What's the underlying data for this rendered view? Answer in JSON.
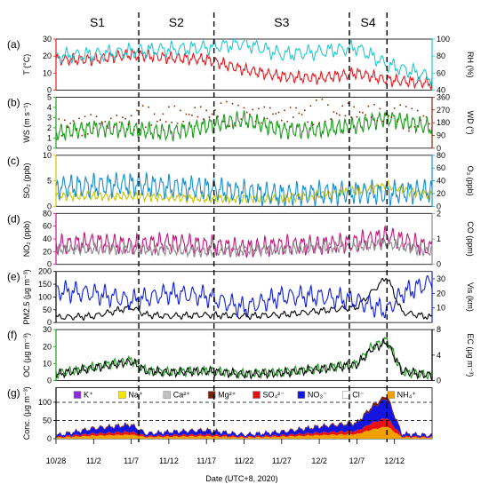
{
  "chart_data": {
    "type": "line",
    "segments": [
      {
        "label": "S1",
        "start_day": 0,
        "end_day": 11
      },
      {
        "label": "S2",
        "start_day": 11,
        "end_day": 21
      },
      {
        "label": "S3",
        "start_day": 21,
        "end_day": 39
      },
      {
        "label": "S4",
        "start_day": 39,
        "end_day": 44
      }
    ],
    "x_axis": {
      "label": "Date (UTC+8, 2020)",
      "range_days": [
        0,
        50
      ],
      "ticks": [
        {
          "day": 0,
          "label": "10/28"
        },
        {
          "day": 5,
          "label": "11/2"
        },
        {
          "day": 10,
          "label": "11/7"
        },
        {
          "day": 15,
          "label": "11/12"
        },
        {
          "day": 20,
          "label": "11/17"
        },
        {
          "day": 25,
          "label": "11/22"
        },
        {
          "day": 30,
          "label": "11/27"
        },
        {
          "day": 35,
          "label": "12/2"
        },
        {
          "day": 40,
          "label": "12/7"
        },
        {
          "day": 45,
          "label": "12/12"
        }
      ]
    },
    "panels": [
      {
        "id": "a",
        "tag": "(a)",
        "left": {
          "label": "T (°C)",
          "color": "#e8191f",
          "ticks": [
            0,
            10,
            20,
            30
          ],
          "ylim": [
            0,
            30
          ]
        },
        "right": {
          "label": "RH (%)",
          "color": "#1ec8d0",
          "ticks": [
            40,
            60,
            80,
            100
          ],
          "ylim": [
            40,
            100
          ]
        },
        "series": [
          {
            "name": "T",
            "axis": "left",
            "color": "#e8191f",
            "keys": [
              [
                0,
                18
              ],
              [
                5,
                18
              ],
              [
                10,
                21
              ],
              [
                15,
                19
              ],
              [
                20,
                18
              ],
              [
                25,
                12
              ],
              [
                30,
                8
              ],
              [
                35,
                7
              ],
              [
                40,
                10
              ],
              [
                44,
                6
              ],
              [
                50,
                4
              ]
            ],
            "wave": 4,
            "period": 1
          },
          {
            "name": "RH",
            "axis": "right",
            "color": "#1ec8d0",
            "keys": [
              [
                0,
                80
              ],
              [
                5,
                82
              ],
              [
                10,
                86
              ],
              [
                15,
                88
              ],
              [
                20,
                90
              ],
              [
                25,
                95
              ],
              [
                30,
                82
              ],
              [
                35,
                85
              ],
              [
                40,
                90
              ],
              [
                44,
                70
              ],
              [
                50,
                55
              ]
            ],
            "wave": 10,
            "period": 1.4
          }
        ]
      },
      {
        "id": "b",
        "tag": "(b)",
        "left": {
          "label": "WS (m s⁻¹)",
          "color": "#1a9c1a",
          "ticks": [
            0,
            1,
            2,
            3,
            4,
            5
          ],
          "ylim": [
            0,
            5
          ]
        },
        "right": {
          "label": "WD (°)",
          "color": "#8b2a0a",
          "ticks": [
            0,
            90,
            180,
            270,
            360
          ],
          "ylim": [
            0,
            360
          ]
        },
        "series": [
          {
            "name": "WS",
            "axis": "left",
            "color": "#1a9c1a",
            "keys": [
              [
                0,
                1.5
              ],
              [
                5,
                2
              ],
              [
                10,
                1.8
              ],
              [
                15,
                1.5
              ],
              [
                20,
                2.2
              ],
              [
                25,
                2.8
              ],
              [
                30,
                1.8
              ],
              [
                35,
                1.8
              ],
              [
                40,
                2.2
              ],
              [
                44,
                3
              ],
              [
                50,
                2
              ]
            ],
            "wave": 1,
            "period": 0.9
          },
          {
            "name": "WD",
            "axis": "right",
            "color": "#8b2a0a",
            "scatter": true,
            "keys": [
              [
                0,
                150
              ],
              [
                10,
                200
              ],
              [
                20,
                250
              ],
              [
                30,
                240
              ],
              [
                40,
                260
              ],
              [
                50,
                200
              ]
            ],
            "wave": 100,
            "period": 0.7
          }
        ]
      },
      {
        "id": "c",
        "tag": "(c)",
        "left": {
          "label": "SO₂ (ppb)",
          "color": "#c8c800",
          "ticks": [
            0,
            5,
            10
          ],
          "ylim": [
            0,
            10
          ]
        },
        "right": {
          "label": "O₃ (ppb)",
          "color": "#1a8fd0",
          "ticks": [
            0,
            20,
            40,
            60,
            80
          ],
          "ylim": [
            0,
            80
          ]
        },
        "series": [
          {
            "name": "SO2",
            "axis": "left",
            "color": "#c8c800",
            "keys": [
              [
                0,
                2
              ],
              [
                10,
                2
              ],
              [
                20,
                1.5
              ],
              [
                30,
                1.5
              ],
              [
                40,
                3
              ],
              [
                44,
                4
              ],
              [
                50,
                2
              ]
            ],
            "wave": 1,
            "period": 0.8
          },
          {
            "name": "O3",
            "axis": "right",
            "color": "#1a8fd0",
            "keys": [
              [
                0,
                30
              ],
              [
                5,
                32
              ],
              [
                10,
                35
              ],
              [
                15,
                30
              ],
              [
                20,
                28
              ],
              [
                25,
                22
              ],
              [
                30,
                18
              ],
              [
                35,
                20
              ],
              [
                40,
                22
              ],
              [
                44,
                20
              ],
              [
                50,
                25
              ]
            ],
            "wave": 22,
            "period": 1
          }
        ]
      },
      {
        "id": "d",
        "tag": "(d)",
        "left": {
          "label": "NO₂ (ppb)",
          "color": "#c0187e",
          "ticks": [
            0,
            20,
            40,
            60,
            80
          ],
          "ylim": [
            0,
            80
          ]
        },
        "right": {
          "label": "CO (ppm)",
          "color": "#8e8e8e",
          "ticks": [
            0,
            1,
            2
          ],
          "ylim": [
            0,
            2
          ]
        },
        "series": [
          {
            "name": "NO2",
            "axis": "left",
            "color": "#c0187e",
            "keys": [
              [
                0,
                30
              ],
              [
                5,
                35
              ],
              [
                10,
                30
              ],
              [
                15,
                35
              ],
              [
                20,
                30
              ],
              [
                25,
                25
              ],
              [
                30,
                30
              ],
              [
                35,
                30
              ],
              [
                40,
                35
              ],
              [
                44,
                45
              ],
              [
                50,
                25
              ]
            ],
            "wave": 18,
            "period": 1
          },
          {
            "name": "CO",
            "axis": "right",
            "color": "#8e8e8e",
            "keys": [
              [
                0,
                0.6
              ],
              [
                10,
                0.6
              ],
              [
                20,
                0.5
              ],
              [
                30,
                0.6
              ],
              [
                40,
                0.7
              ],
              [
                44,
                0.8
              ],
              [
                50,
                0.5
              ]
            ],
            "wave": 0.25,
            "period": 0.8
          }
        ]
      },
      {
        "id": "e",
        "tag": "(e)",
        "left": {
          "label": "PM2.5 (μg m⁻³)",
          "color": "#000000",
          "ticks": [
            0,
            50,
            100,
            150,
            200
          ],
          "ylim": [
            0,
            200
          ]
        },
        "right": {
          "label": "Vis (km)",
          "color": "#1020e0",
          "ticks": [
            10,
            20,
            30
          ],
          "ylim": [
            0,
            35
          ]
        },
        "series": [
          {
            "name": "PM2.5",
            "axis": "left",
            "color": "#000000",
            "keys": [
              [
                0,
                20
              ],
              [
                5,
                25
              ],
              [
                10,
                60
              ],
              [
                12,
                30
              ],
              [
                15,
                25
              ],
              [
                20,
                30
              ],
              [
                25,
                25
              ],
              [
                30,
                30
              ],
              [
                35,
                45
              ],
              [
                40,
                60
              ],
              [
                42,
                120
              ],
              [
                44,
                180
              ],
              [
                46,
                40
              ],
              [
                50,
                20
              ]
            ],
            "wave": 15,
            "period": 1.3
          },
          {
            "name": "Vis",
            "axis": "right",
            "color": "#1020e0",
            "keys": [
              [
                0,
                22
              ],
              [
                5,
                20
              ],
              [
                10,
                15
              ],
              [
                15,
                20
              ],
              [
                20,
                18
              ],
              [
                25,
                10
              ],
              [
                30,
                18
              ],
              [
                35,
                18
              ],
              [
                40,
                15
              ],
              [
                44,
                8
              ],
              [
                46,
                20
              ],
              [
                50,
                28
              ]
            ],
            "wave": 8,
            "period": 1.3
          }
        ]
      },
      {
        "id": "f",
        "tag": "(f)",
        "left": {
          "label": "OC (μg m⁻³)",
          "color": "#1a9c1a",
          "ticks": [
            0,
            10,
            20,
            30
          ],
          "ylim": [
            0,
            30
          ]
        },
        "right": {
          "label": "EC (μg m⁻³)",
          "color": "#000000",
          "ticks": [
            0,
            4,
            8
          ],
          "ylim": [
            0,
            8
          ]
        },
        "series": [
          {
            "name": "OC",
            "axis": "left",
            "color": "#1a9c1a",
            "keys": [
              [
                0,
                4
              ],
              [
                5,
                8
              ],
              [
                10,
                12
              ],
              [
                12,
                6
              ],
              [
                15,
                5
              ],
              [
                20,
                6
              ],
              [
                25,
                4
              ],
              [
                30,
                5
              ],
              [
                35,
                7
              ],
              [
                40,
                10
              ],
              [
                42,
                20
              ],
              [
                44,
                24
              ],
              [
                46,
                5
              ],
              [
                50,
                3
              ]
            ],
            "wave": 3,
            "period": 1
          },
          {
            "name": "EC",
            "axis": "right",
            "color": "#000000",
            "keys": [
              [
                0,
                1
              ],
              [
                5,
                2
              ],
              [
                10,
                3
              ],
              [
                12,
                1.5
              ],
              [
                15,
                1.3
              ],
              [
                20,
                1.5
              ],
              [
                25,
                1
              ],
              [
                30,
                1.2
              ],
              [
                35,
                1.8
              ],
              [
                40,
                2.5
              ],
              [
                42,
                5
              ],
              [
                44,
                6
              ],
              [
                46,
                1.5
              ],
              [
                50,
                0.8
              ]
            ],
            "wave": 0.8,
            "period": 1
          }
        ]
      },
      {
        "id": "g",
        "tag": "(g)",
        "left": {
          "label": "Conc. (μg m⁻³)",
          "color": "#000000",
          "ticks": [
            0,
            50,
            100
          ],
          "ylim": [
            0,
            140
          ]
        },
        "right": null,
        "refs": [
          50,
          100
        ],
        "legend": [
          {
            "label": "K⁺",
            "color": "#8a2be2"
          },
          {
            "label": "Na⁺",
            "color": "#f2e600"
          },
          {
            "label": "Ca²⁺",
            "color": "#c0c0c0"
          },
          {
            "label": "Mg²⁺",
            "color": "#7a1f0a"
          },
          {
            "label": "SO₄²⁻",
            "color": "#e80f0f"
          },
          {
            "label": "NO₃⁻",
            "color": "#1515e0"
          },
          {
            "label": "Cl⁻",
            "color": "#ffffff"
          },
          {
            "label": "NH₄⁺",
            "color": "#f0a000"
          }
        ],
        "stack_total_keys": [
          [
            0,
            10
          ],
          [
            5,
            30
          ],
          [
            10,
            40
          ],
          [
            12,
            15
          ],
          [
            15,
            20
          ],
          [
            20,
            25
          ],
          [
            25,
            12
          ],
          [
            30,
            20
          ],
          [
            35,
            35
          ],
          [
            40,
            45
          ],
          [
            42,
            90
          ],
          [
            44,
            120
          ],
          [
            46,
            15
          ],
          [
            50,
            10
          ]
        ],
        "stack_fractions": {
          "NH4": 0.28,
          "NO3": 0.45,
          "SO4": 0.2,
          "other": 0.07
        }
      }
    ]
  }
}
